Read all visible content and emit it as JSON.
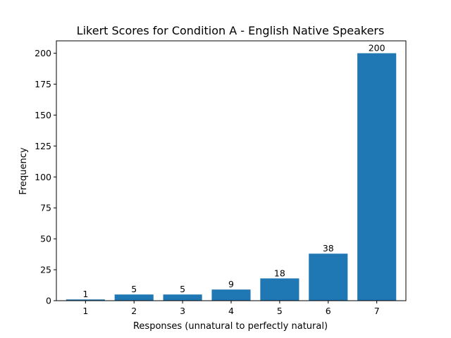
{
  "chart_data": {
    "type": "bar",
    "title": "Likert Scores for Condition A - English Native Speakers",
    "xlabel": "Responses (unnatural to perfectly natural)",
    "ylabel": "Frequency",
    "categories": [
      "1",
      "2",
      "3",
      "4",
      "5",
      "6",
      "7"
    ],
    "values": [
      1,
      5,
      5,
      9,
      18,
      38,
      200
    ],
    "data_labels": [
      "1",
      "5",
      "5",
      "9",
      "18",
      "38",
      "200"
    ],
    "ylim": [
      0,
      210
    ],
    "yticks": [
      0,
      25,
      50,
      75,
      100,
      125,
      150,
      175,
      200
    ],
    "bar_color": "#1f77b4",
    "grid": false
  }
}
